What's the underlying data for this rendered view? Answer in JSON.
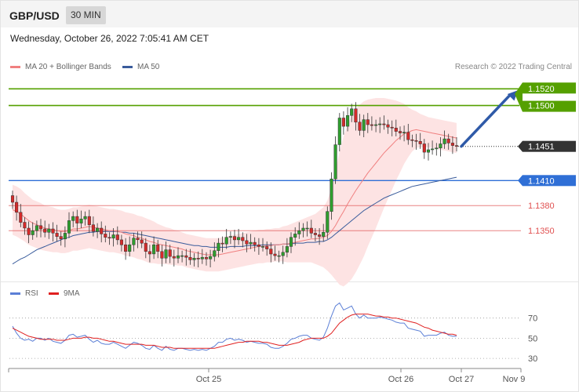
{
  "header": {
    "pair": "GBP/USD",
    "timeframe": "30 MIN"
  },
  "datetime": "Wednesday, October 26, 2022 7:05:41 AM CET",
  "legend": {
    "ma20": {
      "label": "MA 20 + Bollinger Bands",
      "color": "#f08080"
    },
    "ma50": {
      "label": "MA 50",
      "color": "#3a5c9c"
    }
  },
  "credit": "Research © 2022 Trading Central",
  "levels": [
    {
      "value": 1.152,
      "label": "1.1520",
      "kind": "resistance",
      "color": "#55a000"
    },
    {
      "value": 1.15,
      "label": "1.1500",
      "kind": "resistance",
      "color": "#55a000"
    },
    {
      "value": 1.1451,
      "label": "1.1451",
      "kind": "last",
      "color": "#333333"
    },
    {
      "value": 1.141,
      "label": "1.1410",
      "kind": "pivot",
      "color": "#2f6fd6"
    },
    {
      "value": 1.138,
      "label": "1.1380",
      "kind": "support",
      "color": "#e05050"
    },
    {
      "value": 1.135,
      "label": "1.1350",
      "kind": "support",
      "color": "#e05050"
    }
  ],
  "rsi_legend": {
    "rsi": {
      "label": "RSI",
      "color": "#5b7fd6"
    },
    "ma9": {
      "label": "9MA",
      "color": "#e02020"
    }
  },
  "rsi_levels": [
    "70",
    "50",
    "30"
  ],
  "x_labels": [
    "Oct 25",
    "Oct 26",
    "Oct 27",
    "Nov 9"
  ],
  "chart_data": [
    {
      "type": "candlestick",
      "ylim": [
        1.129,
        1.154
      ],
      "close": [
        1.1384,
        1.1372,
        1.136,
        1.1353,
        1.1345,
        1.135,
        1.1356,
        1.1352,
        1.1348,
        1.1352,
        1.1347,
        1.1343,
        1.134,
        1.1347,
        1.1362,
        1.1367,
        1.1359,
        1.1364,
        1.1367,
        1.1357,
        1.1349,
        1.1353,
        1.1346,
        1.1342,
        1.1341,
        1.1345,
        1.1339,
        1.1333,
        1.1325,
        1.1333,
        1.1341,
        1.1339,
        1.1335,
        1.1325,
        1.1322,
        1.1333,
        1.1325,
        1.1317,
        1.1327,
        1.1319,
        1.1317,
        1.132,
        1.132,
        1.1318,
        1.1315,
        1.1317,
        1.1316,
        1.1318,
        1.1316,
        1.1319,
        1.1326,
        1.1335,
        1.1334,
        1.1342,
        1.1343,
        1.1339,
        1.1342,
        1.1338,
        1.1334,
        1.1336,
        1.1333,
        1.1331,
        1.1331,
        1.1328,
        1.1322,
        1.132,
        1.132,
        1.1324,
        1.1331,
        1.1342,
        1.1346,
        1.135,
        1.1353,
        1.1353,
        1.1347,
        1.1345,
        1.1343,
        1.1348,
        1.1373,
        1.1412,
        1.1453,
        1.1485,
        1.1475,
        1.1488,
        1.1496,
        1.148,
        1.147,
        1.1483,
        1.1477,
        1.1476,
        1.1477,
        1.1478,
        1.1477,
        1.1474,
        1.1473,
        1.1469,
        1.1467,
        1.1468,
        1.1459,
        1.1458,
        1.1457,
        1.1454,
        1.1444,
        1.1447,
        1.1448,
        1.1449,
        1.1454,
        1.146,
        1.1455,
        1.1452,
        1.1451
      ],
      "ma20": [
        1.1375,
        1.1373,
        1.137,
        1.1366,
        1.1362,
        1.1359,
        1.1357,
        1.1355,
        1.1353,
        1.1352,
        1.1351,
        1.135,
        1.1349,
        1.1349,
        1.135,
        1.1352,
        1.1352,
        1.1353,
        1.1354,
        1.1355,
        1.1354,
        1.1353,
        1.1352,
        1.1351,
        1.135,
        1.135,
        1.1349,
        1.1348,
        1.1346,
        1.1345,
        1.1344,
        1.1342,
        1.1341,
        1.1339,
        1.1337,
        1.1336,
        1.1334,
        1.1333,
        1.1332,
        1.1331,
        1.133,
        1.1329,
        1.1328,
        1.1326,
        1.1325,
        1.1324,
        1.1323,
        1.1322,
        1.1321,
        1.1321,
        1.1321,
        1.1321,
        1.1322,
        1.1323,
        1.1324,
        1.1325,
        1.1326,
        1.1327,
        1.1328,
        1.1329,
        1.133,
        1.1331,
        1.1331,
        1.1332,
        1.1332,
        1.1333,
        1.1333,
        1.1334,
        1.1334,
        1.1335,
        1.1336,
        1.1337,
        1.1338,
        1.1339,
        1.134,
        1.134,
        1.1341,
        1.1342,
        1.1344,
        1.1349,
        1.1356,
        1.1365,
        1.1373,
        1.1382,
        1.139,
        1.1398,
        1.1405,
        1.1412,
        1.1419,
        1.1425,
        1.1431,
        1.1437,
        1.1443,
        1.1448,
        1.1453,
        1.1458,
        1.1462,
        1.1466,
        1.1468,
        1.147,
        1.1471,
        1.147,
        1.1469,
        1.1468,
        1.1467,
        1.1466,
        1.1465,
        1.1464,
        1.1463,
        1.1462,
        1.1461
      ],
      "ma50": [
        1.131,
        1.1313,
        1.1316,
        1.1318,
        1.1321,
        1.1324,
        1.1327,
        1.1329,
        1.1331,
        1.1333,
        1.1335,
        1.1337,
        1.1339,
        1.1341,
        1.1342,
        1.1344,
        1.1345,
        1.1346,
        1.1347,
        1.1348,
        1.1348,
        1.1349,
        1.1349,
        1.1349,
        1.1349,
        1.1349,
        1.1349,
        1.1348,
        1.1348,
        1.1347,
        1.1347,
        1.1346,
        1.1345,
        1.1344,
        1.1343,
        1.1342,
        1.1341,
        1.134,
        1.1339,
        1.1338,
        1.1337,
        1.1336,
        1.1335,
        1.1334,
        1.1333,
        1.1332,
        1.1332,
        1.1331,
        1.1331,
        1.133,
        1.133,
        1.133,
        1.133,
        1.133,
        1.1331,
        1.1331,
        1.1331,
        1.1331,
        1.1332,
        1.1332,
        1.1332,
        1.1332,
        1.1333,
        1.1333,
        1.1333,
        1.1333,
        1.1333,
        1.1334,
        1.1334,
        1.1334,
        1.1335,
        1.1335,
        1.1335,
        1.1336,
        1.1336,
        1.1336,
        1.1337,
        1.1337,
        1.1339,
        1.1342,
        1.1346,
        1.135,
        1.1354,
        1.1358,
        1.1362,
        1.1366,
        1.137,
        1.1374,
        1.1377,
        1.138,
        1.1383,
        1.1386,
        1.1389,
        1.1391,
        1.1393,
        1.1395,
        1.1397,
        1.1399,
        1.1401,
        1.1403,
        1.1404,
        1.1405,
        1.1406,
        1.1407,
        1.1408,
        1.1409,
        1.141,
        1.1411,
        1.1412,
        1.1413,
        1.1414
      ],
      "bb_width": [
        0.003,
        0.003,
        0.003,
        0.0029,
        0.0029,
        0.0028,
        0.0028,
        0.0028,
        0.0027,
        0.0027,
        0.0027,
        0.0026,
        0.0026,
        0.0026,
        0.0026,
        0.0026,
        0.0026,
        0.0026,
        0.0026,
        0.0026,
        0.0026,
        0.0026,
        0.0026,
        0.0026,
        0.0026,
        0.0026,
        0.0026,
        0.0026,
        0.0026,
        0.0026,
        0.0026,
        0.0026,
        0.0026,
        0.0026,
        0.0026,
        0.0025,
        0.0024,
        0.0023,
        0.0022,
        0.0022,
        0.0021,
        0.0021,
        0.002,
        0.002,
        0.002,
        0.002,
        0.002,
        0.002,
        0.002,
        0.002,
        0.002,
        0.002,
        0.002,
        0.002,
        0.002,
        0.002,
        0.002,
        0.002,
        0.002,
        0.002,
        0.002,
        0.002,
        0.002,
        0.002,
        0.002,
        0.002,
        0.002,
        0.0021,
        0.0022,
        0.0023,
        0.0024,
        0.0025,
        0.0026,
        0.0027,
        0.0028,
        0.003,
        0.0033,
        0.0036,
        0.0042,
        0.0052,
        0.0065,
        0.008,
        0.009,
        0.0095,
        0.0098,
        0.0098,
        0.0096,
        0.0093,
        0.0088,
        0.0083,
        0.0078,
        0.0072,
        0.0066,
        0.006,
        0.0054,
        0.0048,
        0.0042,
        0.0036,
        0.003,
        0.0025,
        0.0022,
        0.002,
        0.0019,
        0.0018,
        0.0018,
        0.0018,
        0.0018,
        0.0018,
        0.0018,
        0.0018,
        0.0018
      ],
      "target_value": 1.152
    },
    {
      "type": "line",
      "ylim": [
        20,
        90
      ],
      "series": [
        {
          "name": "RSI",
          "values": [
            62,
            55,
            50,
            48,
            49,
            47,
            50,
            50,
            48,
            50,
            47,
            46,
            45,
            48,
            53,
            54,
            51,
            52,
            53,
            49,
            46,
            48,
            45,
            44,
            44,
            46,
            44,
            42,
            40,
            43,
            46,
            45,
            43,
            40,
            39,
            43,
            40,
            38,
            42,
            39,
            38,
            40,
            40,
            39,
            38,
            39,
            38,
            39,
            38,
            40,
            42,
            46,
            46,
            49,
            50,
            48,
            49,
            48,
            46,
            47,
            46,
            45,
            45,
            44,
            41,
            40,
            40,
            42,
            45,
            49,
            50,
            52,
            53,
            53,
            50,
            49,
            48,
            51,
            60,
            72,
            82,
            85,
            78,
            80,
            82,
            74,
            70,
            73,
            70,
            70,
            70,
            71,
            70,
            69,
            68,
            66,
            65,
            65,
            60,
            59,
            58,
            57,
            52,
            53,
            53,
            53,
            55,
            56,
            53,
            52,
            52
          ]
        },
        {
          "name": "9MA",
          "values": [
            60,
            58,
            56,
            54,
            52,
            51,
            50,
            49,
            49,
            49,
            49,
            48,
            48,
            48,
            49,
            50,
            50,
            50,
            51,
            51,
            50,
            50,
            49,
            48,
            47,
            47,
            46,
            45,
            44,
            44,
            44,
            44,
            44,
            43,
            43,
            43,
            42,
            41,
            41,
            41,
            40,
            40,
            40,
            40,
            40,
            40,
            40,
            40,
            40,
            40,
            40,
            41,
            42,
            43,
            44,
            45,
            46,
            46,
            47,
            47,
            47,
            47,
            46,
            46,
            45,
            44,
            43,
            43,
            43,
            44,
            45,
            46,
            48,
            49,
            50,
            50,
            50,
            50,
            52,
            55,
            60,
            65,
            68,
            71,
            73,
            74,
            74,
            74,
            74,
            73,
            72,
            72,
            71,
            71,
            70,
            70,
            69,
            68,
            67,
            66,
            65,
            63,
            61,
            60,
            58,
            57,
            56,
            55,
            54,
            54,
            53
          ]
        }
      ],
      "levels": [
        70,
        50,
        30
      ]
    }
  ]
}
